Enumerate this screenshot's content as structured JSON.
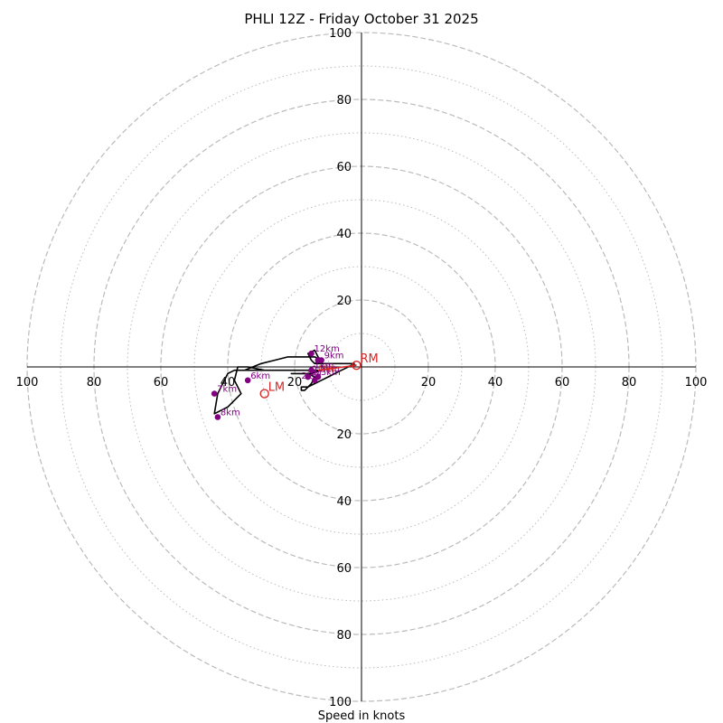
{
  "chart_data": {
    "type": "scatter",
    "title": "PHLI 12Z - Friday October 31 2025",
    "xlabel": "Speed in knots",
    "ylabel": "",
    "xlim": [
      -100,
      100
    ],
    "ylim": [
      -100,
      100
    ],
    "grid": true,
    "ring_major": [
      20,
      40,
      60,
      80,
      100
    ],
    "ring_minor": [
      10,
      30,
      50,
      70,
      90
    ],
    "tick_values": [
      20,
      40,
      60,
      80,
      100
    ],
    "tick_labels": [
      "20",
      "40",
      "60",
      "80",
      "100"
    ],
    "colors": {
      "hodograph": "#000000",
      "height_markers": "#800080",
      "motion": "#d62728",
      "ring": "#bbbbbb",
      "axis": "#000000"
    },
    "hodograph": {
      "u": [
        -1.5,
        -3,
        -4,
        -6,
        -8,
        -10,
        -12,
        -14,
        -16,
        -18,
        -18,
        -17,
        -15,
        -14,
        -16,
        -19,
        -21,
        -19,
        -15,
        -12,
        -14,
        -17,
        -19,
        -21,
        -24,
        -27,
        -30,
        -34,
        -38,
        -40,
        -41,
        -42,
        -43,
        -44,
        -40,
        -36,
        -38,
        -37,
        -34,
        -29,
        -26,
        -24,
        -26,
        -28,
        -30,
        -32,
        -34,
        -36,
        -37,
        -35,
        -30,
        -26,
        -22,
        -18,
        -15,
        -14,
        -12,
        -13,
        -14,
        -16,
        -15,
        -14,
        -12,
        -10,
        -6,
        -3,
        -2
      ],
      "v": [
        0.5,
        0.5,
        0,
        -1,
        -2,
        -3,
        -4,
        -5,
        -6,
        -6,
        -7,
        -7,
        -5,
        -3,
        -2,
        -2,
        -2,
        -2,
        -2,
        -1,
        -1,
        -1,
        -1,
        -1,
        -1,
        -1,
        -1,
        -1,
        -1,
        -2,
        -4,
        -6,
        -8,
        -14,
        -12,
        -8,
        -4,
        0,
        0,
        -1,
        -1,
        -1,
        -1,
        -1,
        -1,
        -1,
        -1,
        -1,
        -1,
        -1,
        1,
        2,
        3,
        3,
        3,
        3,
        2,
        3,
        5,
        4,
        2,
        1,
        1,
        1,
        1,
        1,
        1
      ]
    },
    "height_markers": [
      {
        "label": "",
        "u": -14,
        "v": -4
      },
      {
        "label": "",
        "u": -16,
        "v": -3
      },
      {
        "label": "1km",
        "u": -15,
        "v": -1
      },
      {
        "label": "3km",
        "u": -13,
        "v": -3
      },
      {
        "label": "6km",
        "u": -34,
        "v": -4
      },
      {
        "label": "7km",
        "u": -44,
        "v": -8
      },
      {
        "label": "8km",
        "u": -43,
        "v": -15
      },
      {
        "label": "9km",
        "u": -12,
        "v": 2
      },
      {
        "label": "",
        "u": -13,
        "v": 2
      },
      {
        "label": "12km",
        "u": -15,
        "v": 4
      }
    ],
    "motions": [
      {
        "label": "RM",
        "u": -1.5,
        "v": 0.5
      },
      {
        "label": "LM",
        "u": -29,
        "v": -8
      }
    ],
    "mean_wind_label": "MW",
    "mean_wind": {
      "u": -14,
      "v": -2
    },
    "overlap_labels": [
      "0.5km",
      "2km",
      "SM"
    ]
  }
}
